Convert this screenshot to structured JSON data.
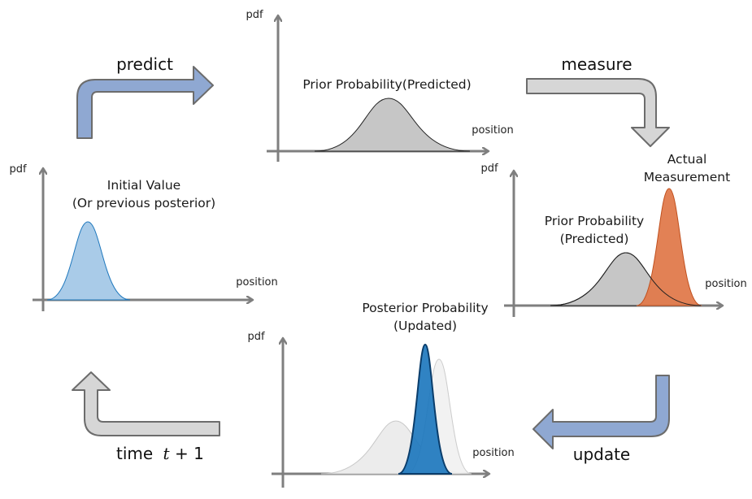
{
  "steps": {
    "predict": "predict",
    "measure": "measure",
    "update": "update",
    "time": "time",
    "time_math_var": "t",
    "time_math_rest": " + 1"
  },
  "axes": {
    "y_label": "pdf",
    "x_label": "position"
  },
  "panels": {
    "initial": {
      "line1": "Initial Value",
      "line2": "(Or previous posterior)"
    },
    "prior": {
      "title": "Prior Probability(Predicted)"
    },
    "measurement": {
      "prior_line1": "Prior Probability",
      "prior_line2": "(Predicted)",
      "actual_line1": "Actual",
      "actual_line2": "Measurement"
    },
    "posterior": {
      "line1": "Posterior Probability",
      "line2": "(Updated)"
    }
  },
  "colors": {
    "arrow_blue": "#8fa8d2",
    "arrow_gray": "#d6d6d6",
    "initial_fill": "#a9cbe8",
    "prior_fill": "#c6c6c6",
    "measurement_fill": "#e07a4c",
    "posterior_fill": "#1a75bc"
  }
}
